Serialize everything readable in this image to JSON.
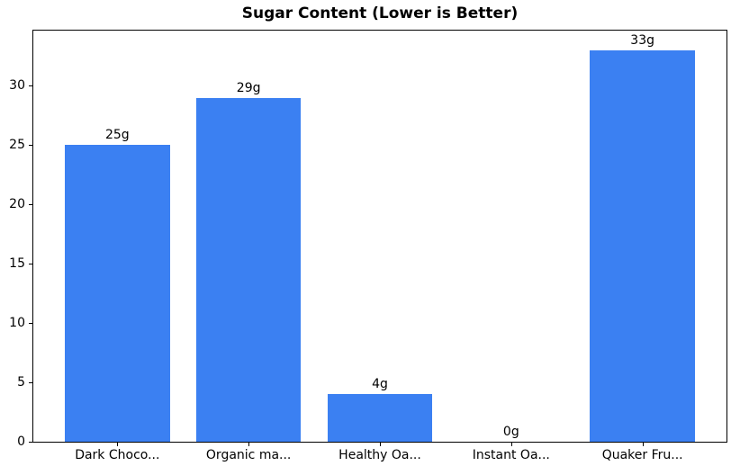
{
  "chart_data": {
    "type": "bar",
    "title": "Sugar Content (Lower is Better)",
    "categories": [
      "Dark Choco...",
      "Organic ma...",
      "Healthy Oa...",
      "Instant Oa...",
      "Quaker Fru..."
    ],
    "values": [
      25,
      29,
      4,
      0,
      33
    ],
    "bar_labels": [
      "25g",
      "29g",
      "4g",
      "0g",
      "33g"
    ],
    "xlabel": "",
    "ylabel": "",
    "yticks": [
      0,
      5,
      10,
      15,
      20,
      25,
      30
    ],
    "ylim": [
      0,
      34.65
    ],
    "bar_color": "#3b80f2",
    "text_color": "#000000",
    "grid": false,
    "legend": "none"
  }
}
